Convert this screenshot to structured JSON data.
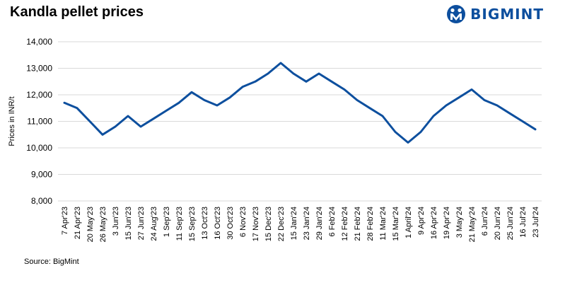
{
  "header": {
    "title": "Kandla pellet prices",
    "logo_text": "BIGMINT",
    "logo_color": "#0d4f9e"
  },
  "source": "Source: BigMint",
  "chart_data": {
    "type": "line",
    "title": "Kandla pellet prices",
    "xlabel": "",
    "ylabel": "Prices in INR/t",
    "ylim": [
      8000,
      14000
    ],
    "yticks": [
      "8,000",
      "9,000",
      "10,000",
      "11,000",
      "12,000",
      "13,000",
      "14,000"
    ],
    "ytick_values": [
      8000,
      9000,
      10000,
      11000,
      12000,
      13000,
      14000
    ],
    "grid": true,
    "line_color": "#0d4f9e",
    "categories": [
      "7 Apr'23",
      "21 Apr'23",
      "20 May'23",
      "26 May'23",
      "3 Jun'23",
      "15 Jun'23",
      "27 Jun'23",
      "24 Aug'23",
      "1 Sep'23",
      "11 Sep'23",
      "15 Sep'23",
      "13 Oct'23",
      "16 Oct'23",
      "30 Oct'23",
      "6 Nov'23",
      "17 Nov'23",
      "15 Dec'23",
      "22 Dec'23",
      "15 Jan'24",
      "23 Jan'24",
      "29 Jan'24",
      "6 Feb'24",
      "12 Feb'24",
      "21 Feb'24",
      "28 Feb'24",
      "11 Mar'24",
      "15 Mar'24",
      "1 April'24",
      "9 Apr'24",
      "16 Apr'24",
      "19 Apr'24",
      "3 May'24",
      "21 May'24",
      "6 Jun'24",
      "20 Jun'24",
      "25 Jun'24",
      "16 Jul'24",
      "23 Jul'24"
    ],
    "values": [
      11700,
      11500,
      11000,
      10500,
      10800,
      11200,
      10800,
      11100,
      11400,
      11700,
      12100,
      11800,
      11600,
      11900,
      12300,
      12500,
      12800,
      13200,
      12800,
      12500,
      12800,
      12500,
      12200,
      11800,
      11500,
      11200,
      10600,
      10200,
      10600,
      11200,
      11600,
      11900,
      12200,
      11800,
      11600,
      11300,
      11000,
      10700
    ]
  }
}
